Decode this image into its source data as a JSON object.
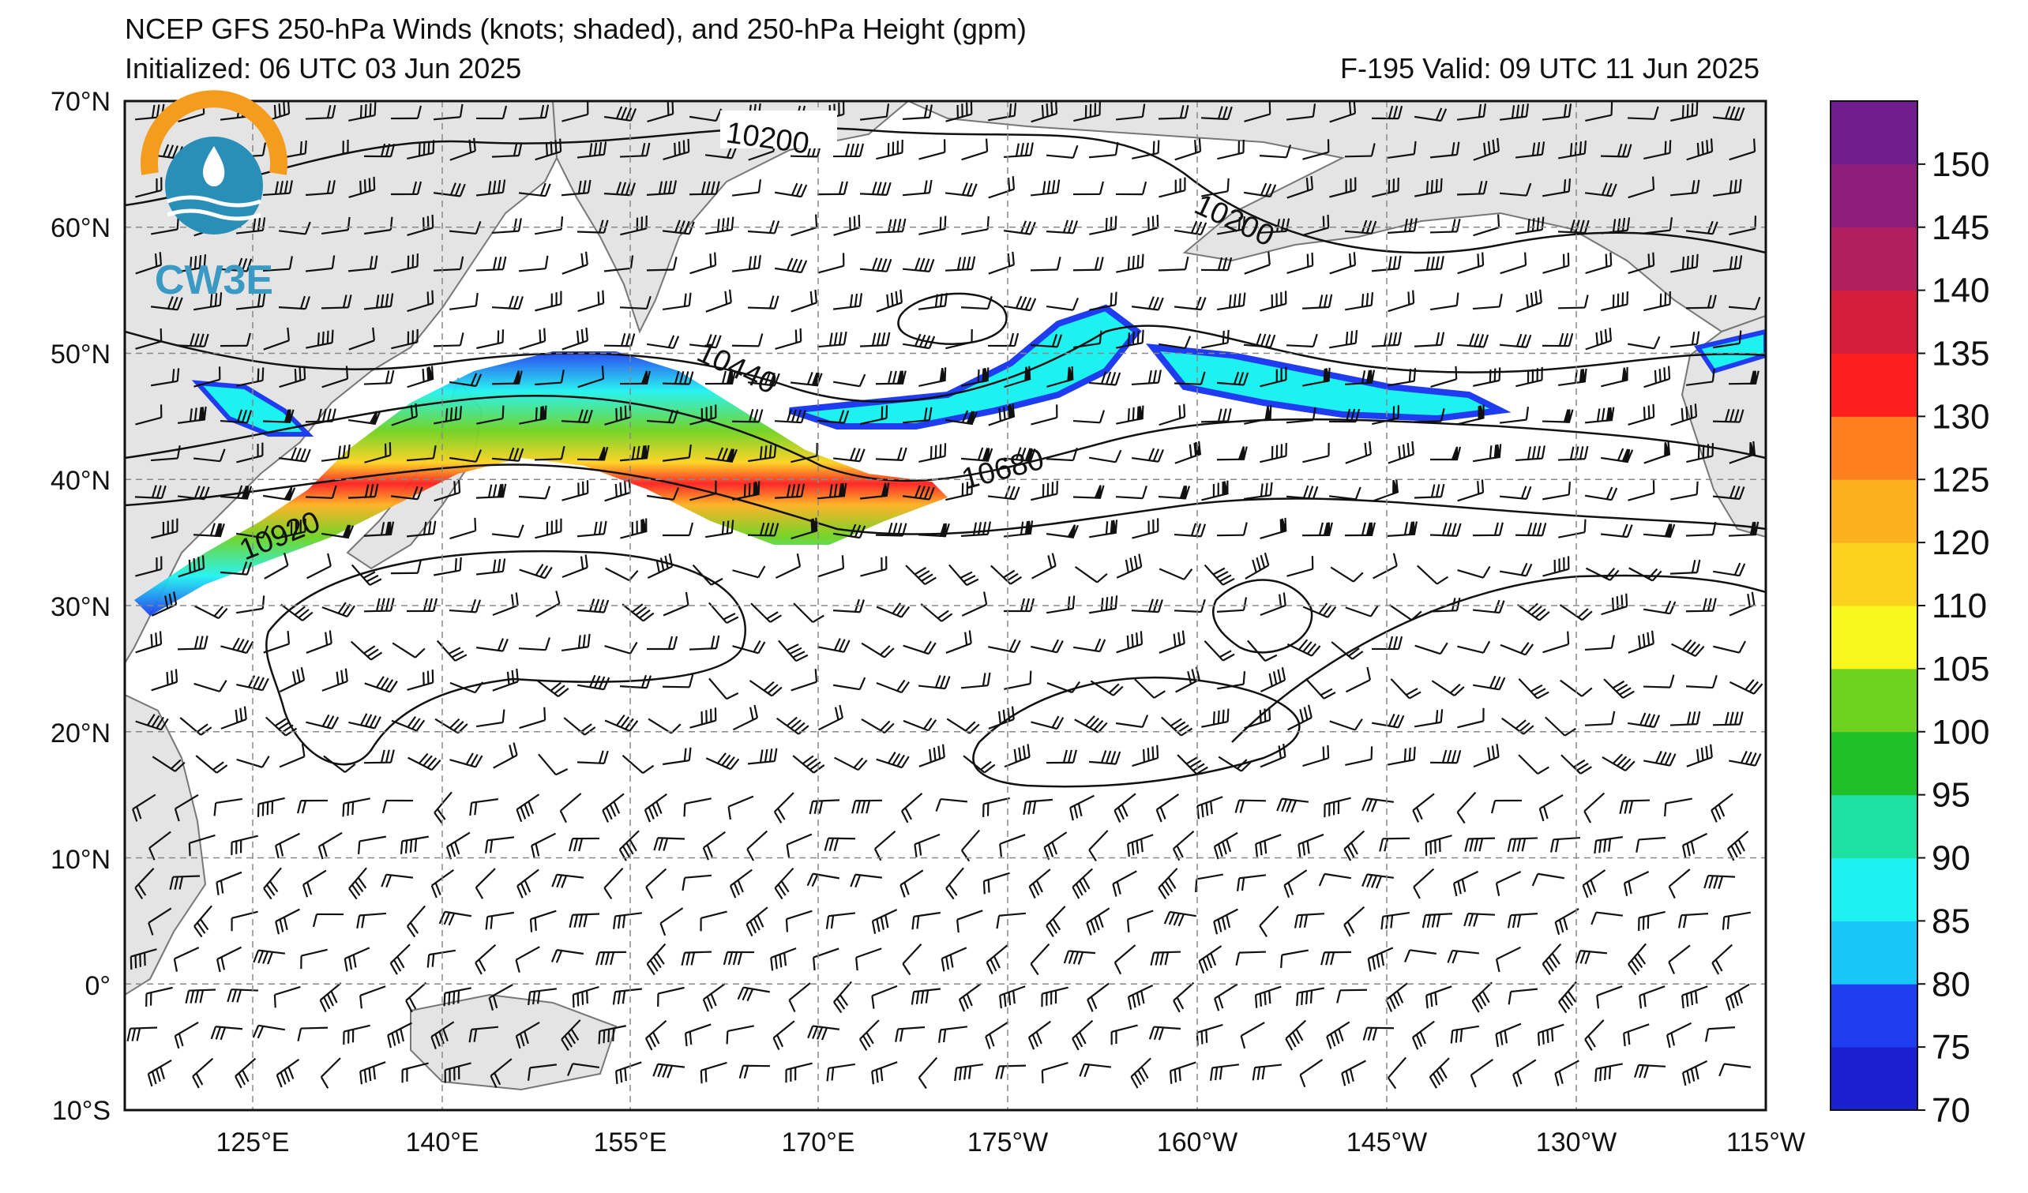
{
  "header": {
    "title": "NCEP GFS 250-hPa Winds (knots; shaded), and 250-hPa Height (gpm)",
    "initialized": "Initialized: 06 UTC 03 Jun 2025",
    "valid": "F-195  Valid: 09 UTC 11 Jun 2025"
  },
  "logo": {
    "text": "CW3E"
  },
  "map": {
    "lat_labels": [
      "70°N",
      "60°N",
      "50°N",
      "40°N",
      "30°N",
      "20°N",
      "10°N",
      "0°",
      "10°S"
    ],
    "lon_labels": [
      "125°E",
      "140°E",
      "155°E",
      "170°E",
      "175°W",
      "160°W",
      "145°W",
      "130°W",
      "115°W"
    ],
    "contour_labels": [
      "10200",
      "10200",
      "10440",
      "10680",
      "10920"
    ],
    "ocean_color": "#ffffff",
    "land_color": "#e4e4e4"
  },
  "colorbar": {
    "ticks": [
      "70",
      "75",
      "80",
      "85",
      "90",
      "95",
      "100",
      "105",
      "110",
      "120",
      "125",
      "130",
      "135",
      "140",
      "145",
      "150"
    ],
    "colors": [
      "#1a1fd0",
      "#1f3cf0",
      "#18c7f8",
      "#1ef2f0",
      "#1ee0a0",
      "#1fbf2a",
      "#6ed21e",
      "#f7f71e",
      "#fdd21e",
      "#fdb01e",
      "#fd7f1e",
      "#fd1e1e",
      "#d41e3c",
      "#b31e5e",
      "#8e1e7a",
      "#701e8e"
    ],
    "range": [
      70,
      155
    ]
  }
}
